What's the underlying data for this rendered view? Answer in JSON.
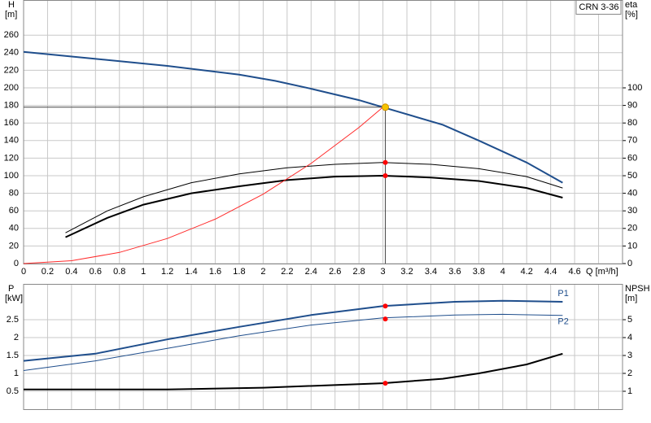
{
  "chart_data": [
    {
      "type": "line",
      "annotation": "CRN 3-36",
      "ylabel": "H",
      "yunit": "[m]",
      "y2label": "eta",
      "y2unit": "[%]",
      "xlabel": "Q [m³/h]",
      "xlim": [
        0,
        5.0
      ],
      "xticks": [
        0,
        0.2,
        0.4,
        0.6,
        0.8,
        1.0,
        1.2,
        1.4,
        1.6,
        1.8,
        2.0,
        2.2,
        2.4,
        2.6,
        2.8,
        3.0,
        3.2,
        3.4,
        3.6,
        3.8,
        4.0,
        4.2,
        4.4,
        4.6
      ],
      "ylim": [
        0,
        300
      ],
      "yticks": [
        0,
        20,
        40,
        60,
        80,
        100,
        120,
        140,
        160,
        180,
        200,
        220,
        240,
        260
      ],
      "y2lim": [
        0,
        150
      ],
      "y2ticks": [
        0,
        10,
        20,
        30,
        40,
        50,
        60,
        70,
        80,
        90,
        100
      ],
      "grid": true,
      "series": [
        {
          "color": "#1f4e8c",
          "width": 2,
          "x": [
            0,
            1.2,
            1.8,
            2.1,
            2.4,
            2.8,
            3.0,
            3.5,
            3.8,
            4.2,
            4.5
          ],
          "values": [
            241,
            225,
            215,
            208,
            199,
            186,
            178,
            158,
            140,
            115,
            92
          ]
        },
        {
          "color": "#000000",
          "width": 1,
          "axis": "y2",
          "x": [
            0.35,
            0.7,
            1.0,
            1.4,
            1.8,
            2.2,
            2.6,
            3.0,
            3.4,
            3.8,
            4.2,
            4.5
          ],
          "values": [
            17.5,
            30,
            38,
            46,
            51,
            54.5,
            56.5,
            57.5,
            56.5,
            54,
            49.5,
            43
          ]
        },
        {
          "color": "#000000",
          "width": 2,
          "axis": "y2",
          "x": [
            0.35,
            0.7,
            1.0,
            1.4,
            1.8,
            2.2,
            2.6,
            3.0,
            3.4,
            3.8,
            4.2,
            4.5
          ],
          "values": [
            15,
            26,
            33.5,
            40,
            44,
            47.5,
            49.5,
            50,
            49,
            47,
            43,
            37.5
          ]
        },
        {
          "color": "#ff2a2a",
          "width": 1,
          "x": [
            0,
            0.4,
            0.8,
            1.2,
            1.6,
            2.0,
            2.4,
            2.8,
            3.0
          ],
          "values": [
            0,
            3.2,
            12.7,
            28.5,
            50.6,
            79,
            114,
            155,
            178
          ]
        },
        {
          "color": "#f5c400",
          "mode": "points",
          "crosshair": true,
          "x": [
            3.02
          ],
          "values": [
            178
          ]
        },
        {
          "color": "#ff0000",
          "mode": "points",
          "axis": "y2",
          "x": [
            3.02,
            3.02
          ],
          "values": [
            57.5,
            50
          ]
        }
      ]
    },
    {
      "type": "line",
      "ylabel": "P",
      "yunit": "[kW]",
      "y2label": "NPSH",
      "y2unit": "[m]",
      "xlim": [
        0,
        5.0
      ],
      "ylim": [
        0,
        3.5
      ],
      "yticks": [
        0.5,
        1.0,
        1.5,
        2.0,
        2.5
      ],
      "y2lim": [
        0,
        7
      ],
      "y2ticks": [
        1,
        2,
        3,
        4,
        5
      ],
      "grid": true,
      "series": [
        {
          "name": "P1",
          "color": "#1f4e8c",
          "width": 2,
          "x": [
            0,
            0.6,
            1.2,
            1.8,
            2.4,
            3.0,
            3.6,
            4.0,
            4.5
          ],
          "values": [
            1.35,
            1.55,
            1.95,
            2.3,
            2.63,
            2.88,
            3.0,
            3.03,
            3.0
          ]
        },
        {
          "name": "P2",
          "color": "#1f4e8c",
          "width": 1,
          "x": [
            0,
            0.6,
            1.2,
            1.8,
            2.4,
            3.0,
            3.6,
            4.0,
            4.5
          ],
          "values": [
            1.08,
            1.35,
            1.7,
            2.05,
            2.35,
            2.55,
            2.63,
            2.65,
            2.62
          ]
        },
        {
          "color": "#000000",
          "width": 2,
          "axis": "y2",
          "x": [
            0,
            1.2,
            2.0,
            3.0,
            3.5,
            3.8,
            4.2,
            4.5
          ],
          "values": [
            1.1,
            1.1,
            1.2,
            1.45,
            1.7,
            2.0,
            2.5,
            3.1
          ]
        },
        {
          "color": "#ff0000",
          "mode": "points",
          "x": [
            3.02,
            3.02
          ],
          "values": [
            2.88,
            2.52
          ]
        },
        {
          "color": "#ff0000",
          "mode": "points",
          "axis": "y2",
          "x": [
            3.02
          ],
          "values": [
            1.45
          ]
        }
      ]
    }
  ]
}
